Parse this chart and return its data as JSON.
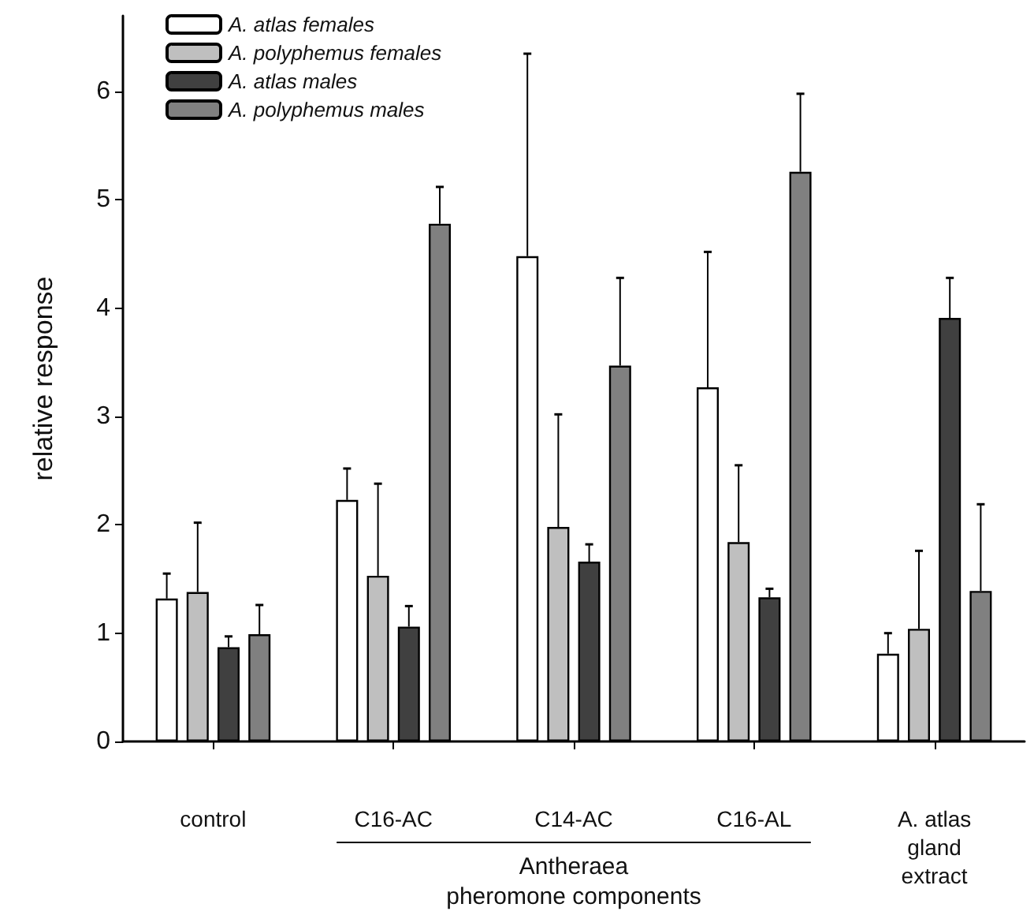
{
  "chart_data": {
    "type": "bar",
    "ylabel": "relative response",
    "categories": [
      "control",
      "C16-AC",
      "C14-AC",
      "C16-AL",
      "A. atlas\ngland\nextract"
    ],
    "series": [
      {
        "name": "A. atlas females",
        "color": "#ffffff",
        "values": [
          1.32,
          2.23,
          4.48,
          3.27,
          0.81
        ],
        "errors": [
          [
            1.32,
            1.55
          ],
          [
            2.23,
            2.52
          ],
          [
            4.48,
            6.35
          ],
          [
            3.27,
            4.52
          ],
          [
            0.81,
            1.0
          ]
        ]
      },
      {
        "name": "A. polyphemus females",
        "color": "#bfbfbf",
        "values": [
          1.38,
          1.53,
          1.98,
          1.84,
          1.04
        ],
        "errors": [
          [
            1.38,
            2.02
          ],
          [
            1.53,
            2.38
          ],
          [
            1.98,
            3.02
          ],
          [
            1.84,
            2.55
          ],
          [
            1.04,
            1.76
          ]
        ]
      },
      {
        "name": "A. atlas males",
        "color": "#404040",
        "values": [
          0.87,
          1.06,
          1.66,
          1.33,
          3.91
        ],
        "errors": [
          [
            0.87,
            0.97
          ],
          [
            1.06,
            1.25
          ],
          [
            1.66,
            1.82
          ],
          [
            1.33,
            1.41
          ],
          [
            3.91,
            4.28
          ]
        ]
      },
      {
        "name": "A. polyphemus males",
        "color": "#808080",
        "values": [
          0.99,
          4.78,
          3.47,
          5.26,
          1.39
        ],
        "errors": [
          [
            0.99,
            1.26
          ],
          [
            4.78,
            5.12
          ],
          [
            3.47,
            4.28
          ],
          [
            5.26,
            5.98
          ],
          [
            1.39,
            2.19
          ]
        ]
      }
    ],
    "ylim": [
      0,
      6.7
    ],
    "yticks": [
      0,
      1,
      2,
      3,
      4,
      5,
      6
    ],
    "grid": false,
    "legend": "top left",
    "annotations": [
      "Antheraea\npheromone components"
    ]
  }
}
